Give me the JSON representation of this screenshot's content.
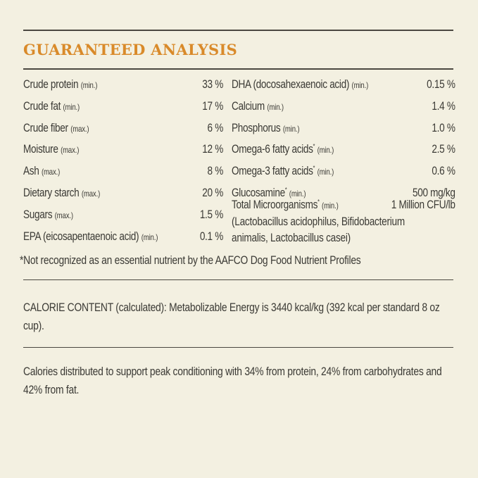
{
  "title": "GUARANTEED ANALYSIS",
  "left": [
    {
      "name": "Crude protein",
      "qual": "(min.)",
      "value": "33 %"
    },
    {
      "name": "Crude fat",
      "qual": "(min.)",
      "value": "17 %"
    },
    {
      "name": "Crude fiber",
      "qual": "(max.)",
      "value": "6 %"
    },
    {
      "name": "Moisture",
      "qual": "(max.)",
      "value": "12 %"
    },
    {
      "name": "Ash",
      "qual": "(max.)",
      "value": "8 %"
    },
    {
      "name": "Dietary starch",
      "qual": "(max.)",
      "value": "20 %"
    },
    {
      "name": "Sugars",
      "qual": "(max.)",
      "value": "1.5 %"
    },
    {
      "name": "EPA (eicosapentaenoic acid)",
      "qual": "(min.)",
      "value": "0.1 %"
    }
  ],
  "right": [
    {
      "name": "DHA (docosahexaenoic acid)",
      "star": "",
      "qual": "(min.)",
      "value": "0.15 %"
    },
    {
      "name": "Calcium",
      "star": "",
      "qual": "(min.)",
      "value": "1.4 %"
    },
    {
      "name": "Phosphorus",
      "star": "",
      "qual": "(min.)",
      "value": "1.0 %"
    },
    {
      "name": "Omega-6 fatty acids",
      "star": "*",
      "qual": "(min.)",
      "value": "2.5 %"
    },
    {
      "name": "Omega-3 fatty acids",
      "star": "*",
      "qual": "(min.)",
      "value": "0.6 %"
    },
    {
      "name": "Glucosamine",
      "star": "*",
      "qual": "(min.)",
      "value": "500 mg/kg"
    },
    {
      "name": "Total Microorganisms",
      "star": "*",
      "qual": "(min.)",
      "value": "1 Million CFU/lb"
    }
  ],
  "microorganisms_detail": [
    "(Lactobacillus acidophilus, Bifidobacterium",
    "animalis, Lactobacillus casei)"
  ],
  "footnote": "*Not recognized as an essential nutrient by the AAFCO Dog Food Nutrient Profiles",
  "calorie_content": "CALORIE CONTENT (calculated): Metabolizable Energy is 3440 kcal/kg (392 kcal per standard 8 oz cup).",
  "calories_distribution": "Calories distributed to support peak conditioning with 34% from protein, 24% from carbohydrates and 42% from fat.",
  "colors": {
    "background": "#f3f0e1",
    "title": "#d98a2a",
    "text": "#3b3a35"
  }
}
